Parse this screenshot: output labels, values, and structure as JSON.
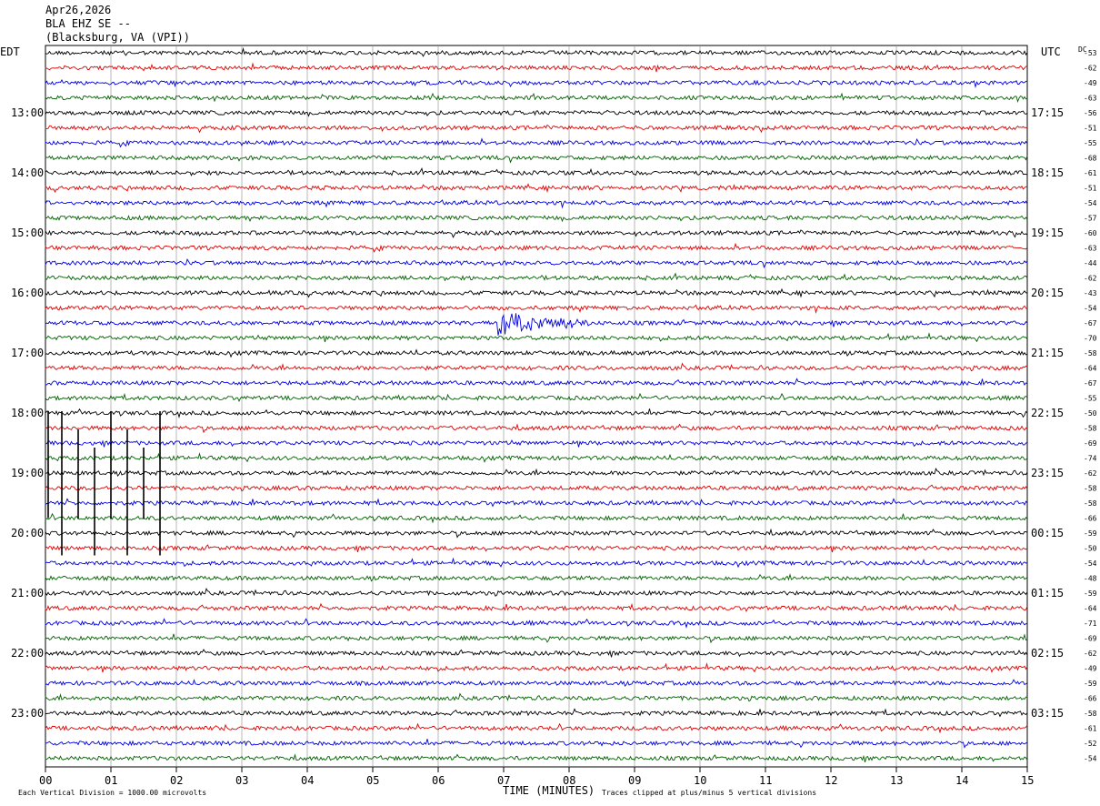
{
  "header": {
    "date": "Apr26,2026",
    "station": "BLA EHZ SE --",
    "location": "(Blacksburg, VA (VPI))"
  },
  "left_zone": "EDT",
  "right_zone": "UTC",
  "dc_label": "DC",
  "footer": {
    "left": "Each Vertical Division = 1000.00 microvolts",
    "center": "TIME (MINUTES)",
    "right": "Traces clipped at plus/minus 5 vertical divisions"
  },
  "colors": [
    "#000000",
    "#e00000",
    "#0000e0",
    "#006000"
  ],
  "chart_data": {
    "type": "line",
    "title": "",
    "xlabel": "TIME (MINUTES)",
    "xlim": [
      0,
      15
    ],
    "x_ticks": [
      "00",
      "01",
      "02",
      "03",
      "04",
      "05",
      "06",
      "07",
      "08",
      "09",
      "10",
      "11",
      "12",
      "13",
      "14",
      "15"
    ],
    "rows_per_hour": 4,
    "row_count": 48,
    "left_hour_labels": [
      "13:00",
      "14:00",
      "15:00",
      "16:00",
      "17:00",
      "18:00",
      "19:00",
      "20:00",
      "21:00",
      "22:00",
      "23:00"
    ],
    "right_hour_labels": [
      "17:15",
      "18:15",
      "19:15",
      "20:15",
      "21:15",
      "22:15",
      "23:15",
      "00:15",
      "01:15",
      "02:15",
      "03:15"
    ],
    "dc_offsets": [
      -53,
      -62,
      -49,
      -63,
      -56,
      -51,
      -55,
      -68,
      -61,
      -51,
      -54,
      -57,
      -60,
      -63,
      -44,
      -62,
      -43,
      -54,
      -67,
      -70,
      -58,
      -64,
      -67,
      -55,
      -50,
      -58,
      -69,
      -74,
      -62,
      -58,
      -58,
      -66,
      -59,
      -50,
      -54,
      -48,
      -59,
      -64,
      -71,
      -69,
      -62,
      -49,
      -59,
      -66,
      -58,
      -61,
      -52,
      -54
    ],
    "events": [
      {
        "row": 18,
        "minute_start": 6.9,
        "minute_end": 8.3,
        "description": "earthquake signal"
      }
    ],
    "clipped_spikes": [
      {
        "row_start": 24,
        "row_end": 33,
        "minutes": [
          0.25,
          0.5,
          0.75,
          1.0,
          1.25,
          1.5,
          1.75
        ]
      }
    ]
  }
}
